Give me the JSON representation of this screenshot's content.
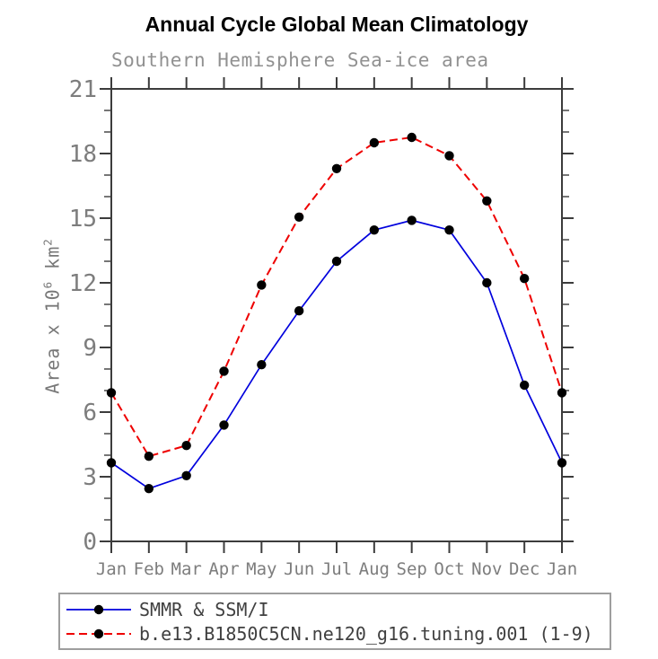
{
  "header": {
    "title": "Annual Cycle Global Mean Climatology",
    "subtitle": "Southern Hemisphere Sea-ice area"
  },
  "chart_data": {
    "type": "line",
    "title": "Annual Cycle Global Mean Climatology",
    "subtitle": "Southern Hemisphere Sea-ice area",
    "xlabel": "",
    "ylabel": "Area x 10^6 km^2",
    "ylabel_parts": [
      {
        "t": "Area x 10"
      },
      {
        "t": "6",
        "sup": true
      },
      {
        "t": " km"
      },
      {
        "t": "2",
        "sup": true
      }
    ],
    "categories": [
      "Jan",
      "Feb",
      "Mar",
      "Apr",
      "May",
      "Jun",
      "Jul",
      "Aug",
      "Sep",
      "Oct",
      "Nov",
      "Dec",
      "Jan"
    ],
    "ylim": [
      0,
      21
    ],
    "ytick_major": [
      0,
      3,
      6,
      9,
      12,
      15,
      18,
      21
    ],
    "ytick_minor_step": 1,
    "grid": false,
    "legend_position": "bottom-left",
    "series": [
      {
        "name": "SMMR & SSM/I",
        "color": "#0000dd",
        "style": "solid",
        "marker": "dot",
        "marker_color": "#000000",
        "values": [
          3.65,
          2.45,
          3.05,
          5.4,
          8.2,
          10.7,
          13.0,
          14.45,
          14.9,
          14.45,
          12.0,
          7.25,
          3.65
        ]
      },
      {
        "name": "b.e13.B1850C5CN.ne120_g16.tuning.001 (1-9)",
        "color": "#ee0000",
        "style": "dashed",
        "marker": "dot",
        "marker_color": "#000000",
        "values": [
          6.9,
          3.95,
          4.45,
          7.9,
          11.9,
          15.05,
          17.3,
          18.5,
          18.75,
          17.9,
          15.8,
          12.2,
          6.9
        ]
      }
    ]
  },
  "colors": {
    "axis": "#3c3c3c",
    "tick_label": "#7d7d7d",
    "subtitle": "#919191",
    "title": "#000000",
    "legend_text": "#404040",
    "legend_border": "#9e9e9e",
    "background": "#ffffff"
  }
}
